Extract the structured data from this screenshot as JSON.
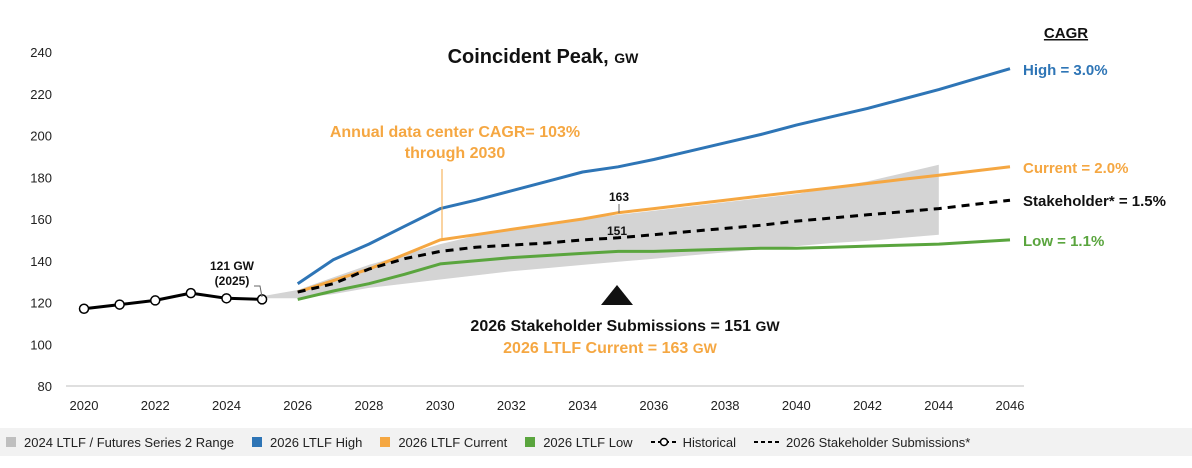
{
  "chart_data": {
    "type": "line",
    "title": "Coincident Peak,",
    "title_unit": "GW",
    "x_ticks": [
      2020,
      2022,
      2024,
      2026,
      2028,
      2030,
      2032,
      2034,
      2036,
      2038,
      2040,
      2042,
      2044,
      2046
    ],
    "y_ticks": [
      80,
      100,
      120,
      140,
      160,
      180,
      200,
      220,
      240
    ],
    "xlim": [
      2020,
      2046
    ],
    "ylim": [
      80,
      240
    ],
    "cagr_header": "CAGR",
    "series": [
      {
        "name": "Historical",
        "color": "#000000",
        "style": "solid-markers",
        "x": [
          2020,
          2021,
          2022,
          2023,
          2024,
          2025
        ],
        "y": [
          117,
          119,
          121,
          124.5,
          122,
          121.5
        ]
      },
      {
        "name": "2026 LTLF High",
        "color": "#2e75b6",
        "style": "solid",
        "end_label": "High = 3.0%",
        "x": [
          2026,
          2027,
          2028,
          2029,
          2030,
          2031,
          2032,
          2033,
          2034,
          2035,
          2036,
          2037,
          2038,
          2039,
          2040,
          2041,
          2042,
          2043,
          2044,
          2045,
          2046
        ],
        "y": [
          129,
          140.5,
          148,
          156.5,
          165,
          169,
          173.5,
          178,
          182.5,
          185,
          188.5,
          192.5,
          196.5,
          200.5,
          205,
          209,
          213,
          217.5,
          222,
          227,
          232
        ]
      },
      {
        "name": "2026 LTLF Current",
        "color": "#f5a742",
        "style": "solid",
        "end_label": "Current = 2.0%",
        "x": [
          2026,
          2027,
          2028,
          2029,
          2030,
          2031,
          2032,
          2033,
          2034,
          2035,
          2036,
          2037,
          2038,
          2039,
          2040,
          2041,
          2042,
          2043,
          2044,
          2045,
          2046
        ],
        "y": [
          125,
          130.5,
          136,
          143,
          150,
          152.5,
          155,
          157.5,
          160,
          163,
          165,
          167,
          169,
          171,
          173,
          175,
          177,
          179,
          181,
          183,
          185
        ]
      },
      {
        "name": "2026 Stakeholder Submissions*",
        "color": "#000000",
        "style": "dashed",
        "end_label": "Stakeholder* = 1.5%",
        "x": [
          2026,
          2027,
          2028,
          2029,
          2030,
          2031,
          2032,
          2033,
          2034,
          2035,
          2036,
          2037,
          2038,
          2039,
          2040,
          2041,
          2042,
          2043,
          2044,
          2045,
          2046
        ],
        "y": [
          125,
          129,
          136,
          141,
          144.5,
          146.5,
          147.5,
          148.5,
          150,
          151,
          152.5,
          154,
          155.5,
          157,
          159,
          160.5,
          162,
          163.5,
          165,
          167,
          169
        ]
      },
      {
        "name": "2026 LTLF Low",
        "color": "#5aa53e",
        "style": "solid",
        "end_label": "Low = 1.1%",
        "x": [
          2026,
          2027,
          2028,
          2029,
          2030,
          2031,
          2032,
          2033,
          2034,
          2035,
          2036,
          2037,
          2038,
          2039,
          2040,
          2041,
          2042,
          2043,
          2044,
          2045,
          2046
        ],
        "y": [
          121.5,
          125.5,
          129,
          133.5,
          138.5,
          140,
          141.5,
          142.5,
          143.5,
          144.5,
          144.5,
          145,
          145.5,
          146,
          146,
          146.5,
          147,
          147.5,
          148,
          149,
          150
        ]
      }
    ],
    "range_band": {
      "name": "2024 LTLF / Futures Series 2 Range",
      "color": "#d4d4d4",
      "x": [
        2025,
        2026,
        2027,
        2028,
        2029,
        2030,
        2031,
        2032,
        2033,
        2034,
        2035,
        2036,
        2037,
        2038,
        2039,
        2040,
        2041,
        2042,
        2043,
        2044
      ],
      "upper": [
        123,
        126,
        132,
        138,
        143,
        148,
        152,
        155,
        158,
        160,
        162,
        164,
        166,
        168,
        170,
        172,
        175,
        178,
        182,
        186
      ],
      "lower": [
        122,
        122,
        124,
        127,
        129,
        131,
        133,
        135,
        136.5,
        138,
        139.5,
        141,
        142.5,
        144,
        145.5,
        147,
        148.5,
        149.5,
        151,
        152.5
      ]
    },
    "annotations": {
      "hist_label_line1": "121 GW",
      "hist_label_line2": "(2025)",
      "datacenter_line1": "Annual data center CAGR= 103%",
      "datacenter_line2": "through 2030",
      "current_2035": "163",
      "stakeholder_2035": "151",
      "submissions_line": "2026 Stakeholder Submissions = 151",
      "submissions_unit": "GW",
      "ltlf_current_line": "2026 LTLF Current = 163",
      "ltlf_current_unit": "GW"
    },
    "legend": [
      {
        "label": "2024 LTLF / Futures Series 2 Range",
        "kind": "square",
        "color": "#bfbfbf"
      },
      {
        "label": "2026 LTLF High",
        "kind": "square",
        "color": "#2e75b6"
      },
      {
        "label": "2026 LTLF Current",
        "kind": "square",
        "color": "#f5a742"
      },
      {
        "label": "2026 LTLF Low",
        "kind": "square",
        "color": "#5aa53e"
      },
      {
        "label": "Historical",
        "kind": "historical",
        "color": "#000000"
      },
      {
        "label": "2026 Stakeholder Submissions*",
        "kind": "dashed",
        "color": "#000000"
      }
    ],
    "colors": {
      "high": "#2e75b6",
      "current": "#f5a742",
      "low": "#5aa53e",
      "black": "#000000",
      "band": "#d4d4d4"
    }
  }
}
